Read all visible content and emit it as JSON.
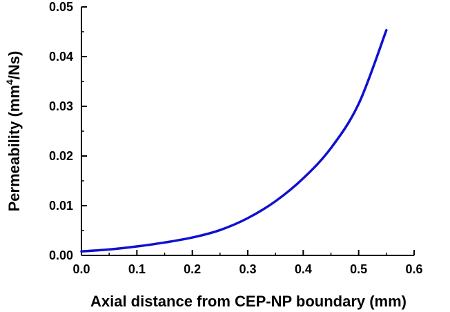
{
  "chart_data": {
    "type": "line",
    "xlabel": "Axial distance from CEP-NP boundary (mm)",
    "ylabel": {
      "prefix": "Permeability (mm",
      "superscript": "4",
      "suffix": "/Ns)"
    },
    "xlim": [
      0.0,
      0.6
    ],
    "ylim": [
      0.0,
      0.05
    ],
    "x_ticks": [
      "0.0",
      "0.1",
      "0.2",
      "0.3",
      "0.4",
      "0.5",
      "0.6"
    ],
    "y_ticks": [
      "0.00",
      "0.01",
      "0.02",
      "0.03",
      "0.04",
      "0.05"
    ],
    "grid": false,
    "legend": "none",
    "line_color": "#1010d0",
    "series": [
      {
        "x": [
          0.0,
          0.05,
          0.1,
          0.15,
          0.2,
          0.25,
          0.3,
          0.35,
          0.4,
          0.45,
          0.5,
          0.55
        ],
        "y": [
          0.0008,
          0.0012,
          0.0018,
          0.0026,
          0.0036,
          0.0051,
          0.0075,
          0.0109,
          0.0155,
          0.0216,
          0.0305,
          0.0453
        ]
      }
    ]
  }
}
